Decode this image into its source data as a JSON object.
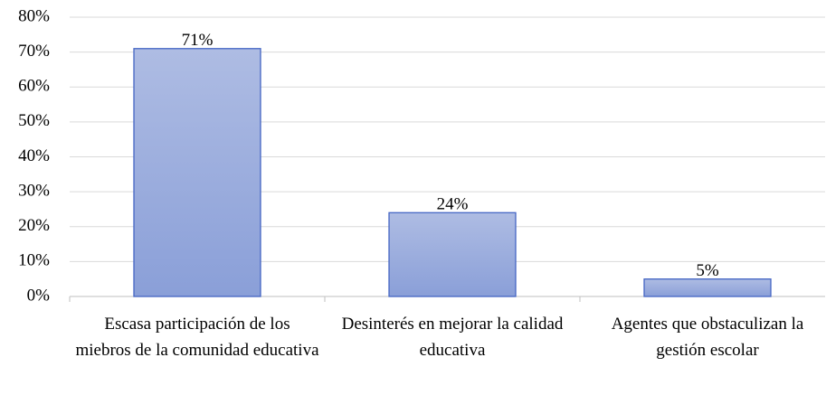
{
  "chart_data": {
    "type": "bar",
    "categories": [
      "Escasa participación de los miebros de la comunidad educativa",
      "Desinterés en mejorar la calidad educativa",
      "Agentes que obstaculizan la gestión escolar"
    ],
    "values": [
      71,
      24,
      5
    ],
    "value_labels": [
      "71%",
      "24%",
      "5%"
    ],
    "color": "#98aadc",
    "ylim": [
      0,
      80
    ],
    "yticks": [
      {
        "value": 0,
        "label": "0%"
      },
      {
        "value": 10,
        "label": "10%"
      },
      {
        "value": 20,
        "label": "20%"
      },
      {
        "value": 30,
        "label": "30%"
      },
      {
        "value": 40,
        "label": "40%"
      },
      {
        "value": 50,
        "label": "50%"
      },
      {
        "value": 60,
        "label": "60%"
      },
      {
        "value": 70,
        "label": "70%"
      },
      {
        "value": 80,
        "label": "80%"
      }
    ],
    "grid": true
  }
}
